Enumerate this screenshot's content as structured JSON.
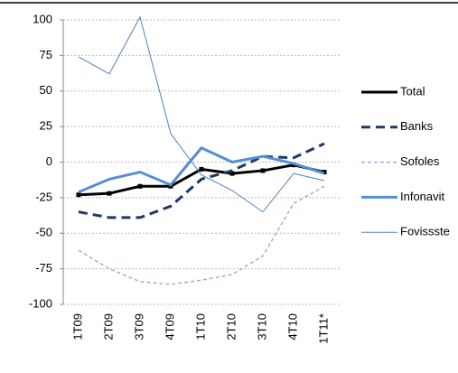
{
  "chart_data": {
    "type": "line",
    "categories": [
      "1T09",
      "2T09",
      "3T09",
      "4T09",
      "1T10",
      "2T10",
      "3T10",
      "4T10",
      "1T11*"
    ],
    "series": [
      {
        "name": "Total",
        "color": "#000000",
        "values": [
          -23,
          -22,
          -17,
          -17,
          -5,
          -8,
          -6,
          -2,
          -7
        ]
      },
      {
        "name": "Banks",
        "color": "#1f3864",
        "values": [
          -35,
          -39,
          -39,
          -31,
          -12,
          -6,
          4,
          3,
          13
        ]
      },
      {
        "name": "Sofoles",
        "color": "#95b3d7",
        "values": [
          -62,
          -75,
          -84,
          -86,
          -83,
          -79,
          -66,
          -29,
          -17
        ]
      },
      {
        "name": "Infonavit",
        "color": "#558ed5",
        "values": [
          -21,
          -12,
          -7,
          -16,
          10,
          0,
          4,
          -1,
          -8
        ]
      },
      {
        "name": "Fovissste",
        "color": "#4f81bd",
        "values": [
          74,
          62,
          102,
          20,
          -9,
          -20,
          -35,
          -8,
          -13
        ]
      }
    ],
    "ylim": [
      -100,
      100
    ],
    "yticks": [
      -100,
      -75,
      -50,
      -25,
      0,
      25,
      50,
      75,
      100
    ],
    "grid": true,
    "legend": "right"
  }
}
